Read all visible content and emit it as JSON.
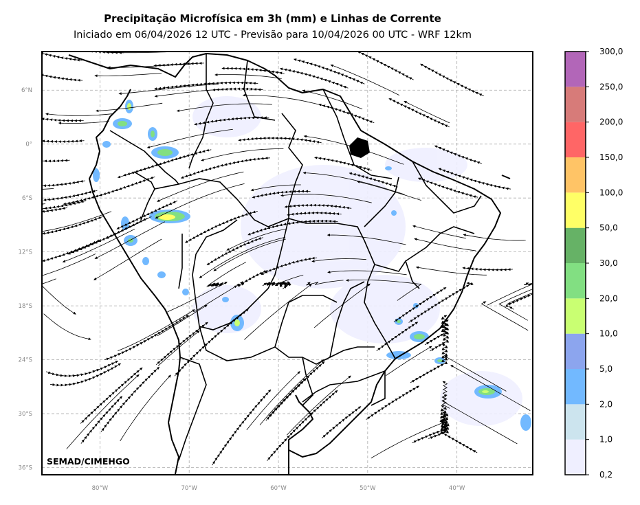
{
  "title": "Precipitação Microfísica em 3h (mm) e Linhas de Corrente",
  "subtitle": "Iniciado em 06/04/2026 12 UTC - Previsão para 10/04/2026 00 UTC - WRF 12km",
  "credit": "SEMAD/CIMEHGO",
  "map": {
    "lon_range": [
      -86.5,
      -31.5
    ],
    "lat_range": [
      -36.8,
      10.3
    ],
    "lon_ticks": [
      {
        "value": -80,
        "label": "80°W"
      },
      {
        "value": -70,
        "label": "70°W"
      },
      {
        "value": -60,
        "label": "60°W"
      },
      {
        "value": -50,
        "label": "50°W"
      },
      {
        "value": -40,
        "label": "40°W"
      }
    ],
    "lat_ticks": [
      {
        "value": 6,
        "label": "6°N"
      },
      {
        "value": 0,
        "label": "0°"
      },
      {
        "value": -6,
        "label": "6°S"
      },
      {
        "value": -12,
        "label": "12°S"
      },
      {
        "value": -18,
        "label": "18°S"
      },
      {
        "value": -24,
        "label": "24°S"
      },
      {
        "value": -30,
        "label": "30°S"
      },
      {
        "value": -36,
        "label": "36°S"
      }
    ],
    "grid": true
  },
  "colorbar": {
    "labels": [
      "0,2",
      "1,0",
      "2,0",
      "5,0",
      "10,0",
      "20,0",
      "30,0",
      "50,0",
      "100,0",
      "150,0",
      "200,0",
      "250,0",
      "300,0"
    ],
    "colors": [
      "#efefff",
      "#cce4ee",
      "#72b9ff",
      "#8ca5ee",
      "#c9ff72",
      "#82df82",
      "#66b266",
      "#ffff66",
      "#ffc466",
      "#ff6666",
      "#d77b79",
      "#b266b8"
    ]
  }
}
